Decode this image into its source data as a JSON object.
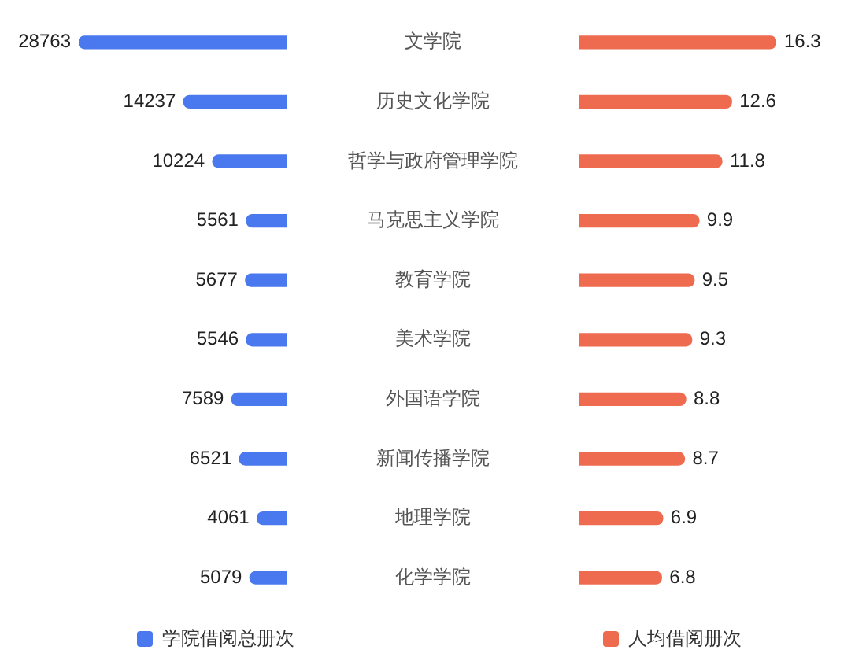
{
  "chart_data": [
    {
      "type": "bar",
      "orientation": "horizontal",
      "tick_labels": false,
      "categories": [
        "文学院",
        "历史文化学院",
        "哲学与政府管理学院",
        "马克思主义学院",
        "教育学院",
        "美术学院",
        "外国语学院",
        "新闻传播学院",
        "地理学院",
        "化学学院"
      ],
      "series": [
        {
          "name": "学院借阅总册次",
          "color": "#4a78ee",
          "values": [
            28763,
            14237,
            10224,
            5561,
            5677,
            5546,
            7589,
            6521,
            4061,
            5079
          ]
        }
      ],
      "data_labels": true,
      "legend": "bottom"
    },
    {
      "type": "bar",
      "orientation": "horizontal",
      "tick_labels": "y",
      "categories": [
        "文学院",
        "历史文化学院",
        "哲学与政府管理学院",
        "马克思主义学院",
        "教育学院",
        "美术学院",
        "外国语学院",
        "新闻传播学院",
        "地理学院",
        "化学学院"
      ],
      "series": [
        {
          "name": "人均借阅册次",
          "color": "#ee6b4f",
          "values": [
            16.3,
            12.6,
            11.8,
            9.9,
            9.5,
            9.3,
            8.8,
            8.7,
            6.9,
            6.8
          ]
        }
      ],
      "data_labels": true,
      "legend": "bottom"
    }
  ]
}
